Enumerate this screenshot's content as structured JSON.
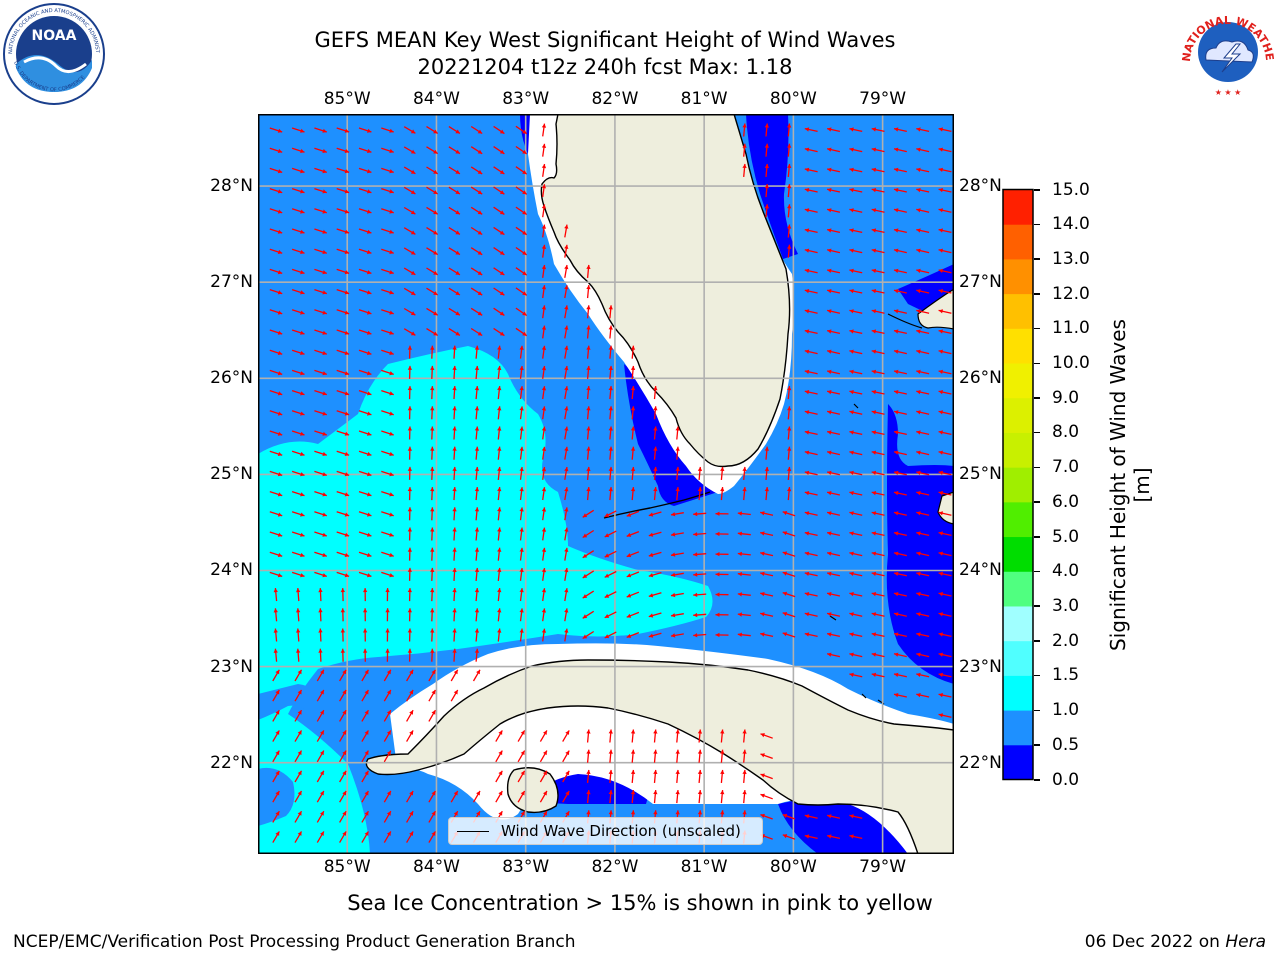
{
  "title": {
    "line1": "GEFS MEAN Key West Significant Height of Wind Waves",
    "line2": "20221204 t12z 240h fcst   Max: 1.18"
  },
  "logos": {
    "noaa": {
      "center": "NOAA",
      "ring": "NATIONAL OCEANIC AND ATMOSPHERIC ADMINISTRATION",
      "ring_bottom": "U.S. DEPARTMENT OF COMMERCE"
    },
    "nws": {
      "ring": "NATIONAL WEATHER SERVICE"
    }
  },
  "map": {
    "lon_ticks": [
      "85°W",
      "84°W",
      "83°W",
      "82°W",
      "81°W",
      "80°W",
      "79°W"
    ],
    "lat_ticks": [
      "28°N",
      "27°N",
      "26°N",
      "25°N",
      "24°N",
      "23°N",
      "22°N"
    ],
    "lon_values": [
      -85,
      -84,
      -83,
      -82,
      -81,
      -80,
      -79
    ],
    "lat_values": [
      28,
      27,
      26,
      25,
      24,
      23,
      22
    ],
    "lon_range": [
      -86.0,
      -78.2
    ],
    "lat_range": [
      21.05,
      28.75
    ],
    "grid": true,
    "colors": {
      "land": "#eeeedd",
      "coast": "#000000",
      "arrows": "#ff0000",
      "grid": "#b0b0b0",
      "coastal_gap": "#ffffff"
    },
    "legend": {
      "label": "Wind Wave Direction (unscaled)",
      "placement": "bottom-center"
    }
  },
  "colorbar": {
    "label": "Significant Height of Wind Waves [m]",
    "ticks": [
      "0.0",
      "0.5",
      "1.0",
      "1.5",
      "2.0",
      "3.0",
      "4.0",
      "5.0",
      "6.0",
      "7.0",
      "8.0",
      "9.0",
      "10.0",
      "11.0",
      "12.0",
      "13.0",
      "14.0",
      "15.0"
    ],
    "colors": [
      "#0000ff",
      "#1e90ff",
      "#00ffff",
      "#50ffff",
      "#a0ffff",
      "#50ff80",
      "#00dd00",
      "#50ee00",
      "#a0ee00",
      "#c8f000",
      "#dcf000",
      "#f0f000",
      "#ffe000",
      "#ffc000",
      "#ff9000",
      "#ff6000",
      "#ff2000"
    ]
  },
  "footer": {
    "sea_ice": "Sea Ice Concentration > 15% is shown in pink to yellow",
    "left": "NCEP/EMC/Verification Post Processing Product Generation Branch",
    "right_date": "06 Dec 2022 on ",
    "right_host": "Hera"
  }
}
